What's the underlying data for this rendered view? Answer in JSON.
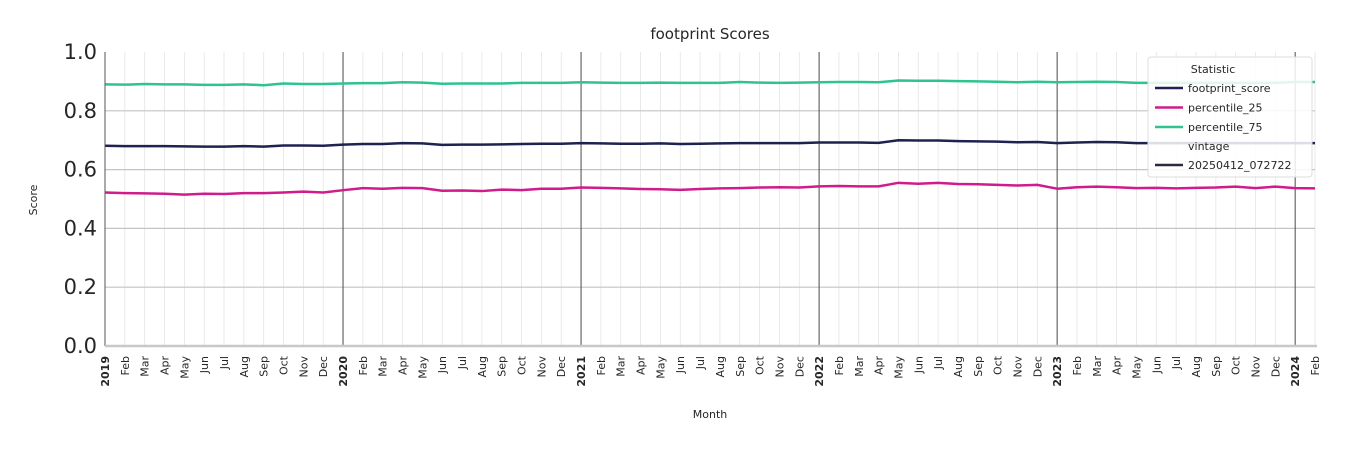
{
  "chart_data": {
    "type": "line",
    "title": "footprint Scores",
    "xlabel": "Month",
    "ylabel": "Score",
    "ylim": [
      0,
      1
    ],
    "yticks": [
      "0.0",
      "0.2",
      "0.4",
      "0.6",
      "0.8",
      "1.0"
    ],
    "x": [
      "2019",
      "Feb",
      "Mar",
      "Apr",
      "May",
      "Jun",
      "Jul",
      "Aug",
      "Sep",
      "Oct",
      "Nov",
      "Dec",
      "2020",
      "Feb",
      "Mar",
      "Apr",
      "May",
      "Jun",
      "Jul",
      "Aug",
      "Sep",
      "Oct",
      "Nov",
      "Dec",
      "2021",
      "Feb",
      "Mar",
      "Apr",
      "May",
      "Jun",
      "Jul",
      "Aug",
      "Sep",
      "Oct",
      "Nov",
      "Dec",
      "2022",
      "Feb",
      "Mar",
      "Apr",
      "May",
      "Jun",
      "Jul",
      "Aug",
      "Sep",
      "Oct",
      "Nov",
      "Dec",
      "2023",
      "Feb",
      "Mar",
      "Apr",
      "May",
      "Jun",
      "Jul",
      "Aug",
      "Sep",
      "Oct",
      "Nov",
      "Dec",
      "2024",
      "Feb"
    ],
    "year_markers": [
      "2019",
      "2020",
      "2021",
      "2022",
      "2023",
      "2024"
    ],
    "grid": true,
    "legend_position": "top-right",
    "legend_title": "Statistic",
    "vintage_label": "vintage",
    "vintage_value": "20250412_072722",
    "vintage_color": "#2b2b3b",
    "series": [
      {
        "name": "footprint_score",
        "color": "#1f2150",
        "values": [
          0.681,
          0.68,
          0.68,
          0.68,
          0.679,
          0.678,
          0.678,
          0.68,
          0.678,
          0.682,
          0.682,
          0.681,
          0.685,
          0.687,
          0.687,
          0.69,
          0.689,
          0.684,
          0.685,
          0.685,
          0.686,
          0.687,
          0.688,
          0.688,
          0.69,
          0.689,
          0.688,
          0.688,
          0.689,
          0.687,
          0.688,
          0.689,
          0.69,
          0.69,
          0.69,
          0.69,
          0.692,
          0.692,
          0.692,
          0.691,
          0.7,
          0.699,
          0.699,
          0.697,
          0.696,
          0.695,
          0.693,
          0.694,
          0.69,
          0.692,
          0.694,
          0.693,
          0.69,
          0.69,
          0.69,
          0.69,
          0.69,
          0.69,
          0.69,
          0.69,
          0.69,
          0.69
        ]
      },
      {
        "name": "percentile_25",
        "color": "#d01c8b",
        "values": [
          0.522,
          0.52,
          0.519,
          0.518,
          0.515,
          0.518,
          0.517,
          0.52,
          0.52,
          0.522,
          0.525,
          0.522,
          0.53,
          0.537,
          0.535,
          0.538,
          0.537,
          0.528,
          0.529,
          0.527,
          0.532,
          0.53,
          0.535,
          0.535,
          0.539,
          0.538,
          0.536,
          0.534,
          0.533,
          0.531,
          0.534,
          0.536,
          0.537,
          0.539,
          0.54,
          0.539,
          0.543,
          0.544,
          0.543,
          0.543,
          0.555,
          0.552,
          0.555,
          0.551,
          0.55,
          0.548,
          0.546,
          0.548,
          0.535,
          0.54,
          0.542,
          0.54,
          0.537,
          0.538,
          0.536,
          0.538,
          0.539,
          0.542,
          0.537,
          0.542,
          0.537,
          0.536
        ]
      },
      {
        "name": "percentile_75",
        "color": "#2ec48e",
        "values": [
          0.89,
          0.889,
          0.891,
          0.89,
          0.89,
          0.888,
          0.888,
          0.89,
          0.887,
          0.893,
          0.891,
          0.891,
          0.893,
          0.894,
          0.894,
          0.897,
          0.896,
          0.892,
          0.893,
          0.893,
          0.893,
          0.895,
          0.895,
          0.895,
          0.897,
          0.896,
          0.895,
          0.895,
          0.896,
          0.895,
          0.895,
          0.895,
          0.898,
          0.896,
          0.895,
          0.896,
          0.897,
          0.898,
          0.898,
          0.897,
          0.903,
          0.902,
          0.902,
          0.901,
          0.9,
          0.899,
          0.897,
          0.899,
          0.897,
          0.898,
          0.899,
          0.898,
          0.895,
          0.895,
          0.895,
          0.895,
          0.895,
          0.895,
          0.895,
          0.895,
          0.898,
          0.898
        ]
      }
    ]
  }
}
